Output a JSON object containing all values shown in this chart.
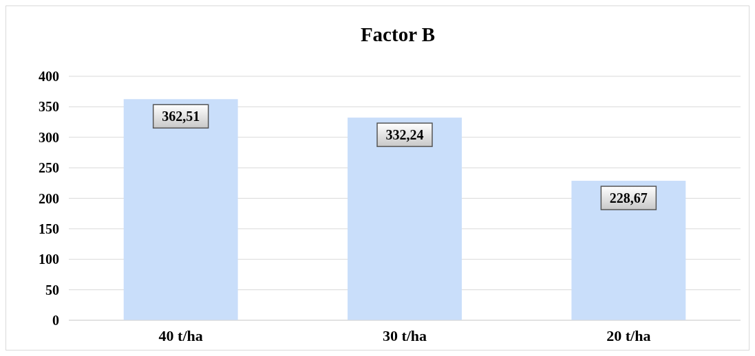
{
  "chart_data": {
    "type": "bar",
    "title": "Factor B",
    "categories": [
      "40 t/ha",
      "30 t/ha",
      "20 t/ha"
    ],
    "values": [
      362.51,
      332.24,
      228.67
    ],
    "value_labels": [
      "362,51",
      "332,24",
      "228,67"
    ],
    "color": "#c9defa",
    "ylim": [
      0,
      400
    ],
    "yticks": [
      0,
      50,
      100,
      150,
      200,
      250,
      300,
      350,
      400
    ],
    "grid": "y"
  }
}
